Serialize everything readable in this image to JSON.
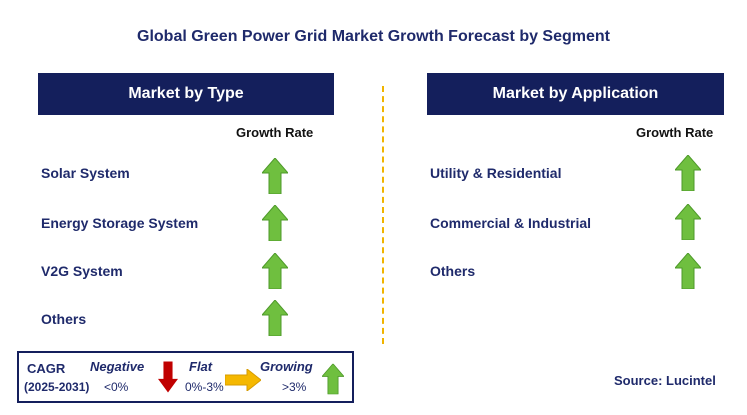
{
  "title": "Global Green Power Grid Market Growth Forecast by Segment",
  "left_panel": {
    "header": "Market by Type",
    "growth_rate_label": "Growth Rate",
    "rows": [
      "Solar System",
      "Energy Storage System",
      "V2G System",
      "Others"
    ],
    "row_trends": [
      "growing",
      "growing",
      "growing",
      "growing"
    ]
  },
  "right_panel": {
    "header": "Market by Application",
    "growth_rate_label": "Growth Rate",
    "rows": [
      "Utility & Residential",
      "Commercial & Industrial",
      "Others"
    ],
    "row_trends": [
      "growing",
      "growing",
      "growing"
    ]
  },
  "legend": {
    "cagr_label": "CAGR",
    "period": "(2025-2031)",
    "negative": {
      "label": "Negative",
      "range": "<0%",
      "icon": "red-down-arrow-icon"
    },
    "flat": {
      "label": "Flat",
      "range": "0%-3%",
      "icon": "yellow-right-arrow-icon"
    },
    "growing": {
      "label": "Growing",
      "range": ">3%",
      "icon": "green-up-arrow-icon"
    }
  },
  "source": "Source: Lucintel",
  "colors": {
    "header_bg": "#141f5c",
    "text": "#1f2a6b",
    "growing": "#6fbf3f",
    "negative": "#c00000",
    "flat": "#f5b800",
    "divider": "#f0b400"
  }
}
